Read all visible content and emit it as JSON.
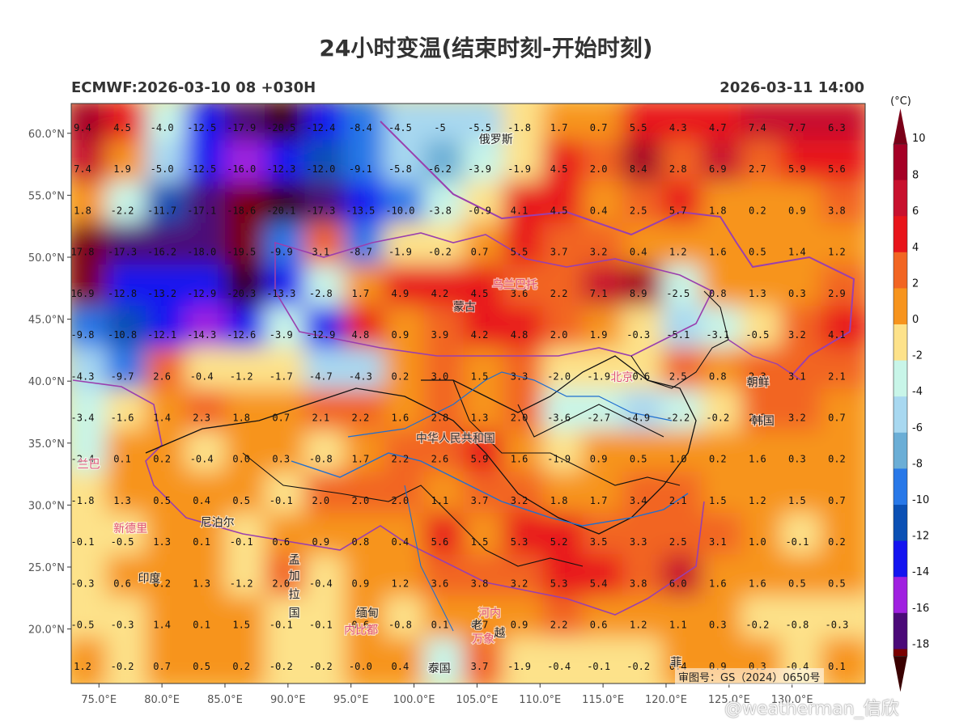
{
  "header": {
    "title": "24小时变温(结束时刻-开始时刻)",
    "model_run": "ECMWF:2026-03-10 08 +030H",
    "valid_time": "2026-03-11 14:00"
  },
  "colorbar": {
    "unit": "(°C)",
    "labels": [
      "10",
      "8",
      "6",
      "4",
      "2",
      "0",
      "-2",
      "-4",
      "-6",
      "-8",
      "-10",
      "-12",
      "-14",
      "-16",
      "-18"
    ],
    "bins": [
      {
        "from": 8,
        "to": 10,
        "color": "#a50026"
      },
      {
        "from": 6,
        "to": 8,
        "color": "#c8102e"
      },
      {
        "from": 4,
        "to": 6,
        "color": "#e8141a"
      },
      {
        "from": 2,
        "to": 4,
        "color": "#f26522"
      },
      {
        "from": 0,
        "to": 2,
        "color": "#f7941d"
      },
      {
        "from": -2,
        "to": 0,
        "color": "#fde28a"
      },
      {
        "from": -4,
        "to": -2,
        "color": "#c8f5e8"
      },
      {
        "from": -6,
        "to": -4,
        "color": "#a8d8f0"
      },
      {
        "from": -8,
        "to": -6,
        "color": "#6baed6"
      },
      {
        "from": -10,
        "to": -8,
        "color": "#2878e8"
      },
      {
        "from": -12,
        "to": -10,
        "color": "#0b50b4"
      },
      {
        "from": -14,
        "to": -12,
        "color": "#1414f0"
      },
      {
        "from": -16,
        "to": -14,
        "color": "#a020e0"
      },
      {
        "from": -18,
        "to": -16,
        "color": "#4b0a78"
      },
      {
        "from": -20,
        "to": -18,
        "color": "#7a0000"
      }
    ],
    "top_cap_color": "#7a0018",
    "bottom_cap_color": "#3a0000"
  },
  "axes": {
    "lat_labels": [
      "60.0°N",
      "55.0°N",
      "50.0°N",
      "45.0°N",
      "40.0°N",
      "35.0°N",
      "30.0°N",
      "25.0°N",
      "20.0°N"
    ],
    "lon_labels": [
      "75.0°E",
      "80.0°E",
      "85.0°E",
      "90.0°E",
      "95.0°E",
      "100.0°E",
      "105.0°E",
      "110.0°E",
      "115.0°E",
      "120.0°E",
      "125.0°E",
      "130.0°E"
    ],
    "lat_values": [
      60,
      55,
      50,
      45,
      40,
      35,
      30,
      25,
      20
    ],
    "lon_values": [
      75,
      80,
      85,
      90,
      95,
      100,
      105,
      110,
      115,
      120,
      125,
      130
    ]
  },
  "grid_values": [
    [
      "9.4",
      "4.5",
      "-4.0",
      "-12.5",
      "-17.9",
      "-20.5",
      "-12.4",
      "-8.4",
      "-4.5",
      "-5",
      "-5.5",
      "-1.8",
      "1.7",
      "0.7",
      "5.5",
      "4.3",
      "4.7",
      "7.4",
      "7.7",
      "6.3"
    ],
    [
      "7.4",
      "1.9",
      "-5.0",
      "-12.5",
      "-16.0",
      "-12.3",
      "-12.0",
      "-9.1",
      "-5.8",
      "-6.2",
      "-3.9",
      "-1.9",
      "4.5",
      "2.0",
      "8.4",
      "2.8",
      "6.9",
      "2.7",
      "5.9",
      "5.6"
    ],
    [
      "1.8",
      "-2.2",
      "-11.7",
      "-17.1",
      "-18.6",
      "-20.1",
      "-17.3",
      "-13.5",
      "-10.0",
      "-3.8",
      "-0.9",
      "4.1",
      "4.5",
      "0.4",
      "2.5",
      "5.7",
      "1.8",
      "0.2",
      "0.9",
      "3.8"
    ],
    [
      "17.8",
      "-17.3",
      "-16.2",
      "-18.0",
      "-19.5",
      "-9.9",
      "3.1",
      "-8.7",
      "-1.9",
      "-0.2",
      "0.7",
      "5.5",
      "3.7",
      "3.2",
      "0.4",
      "1.2",
      "1.6",
      "0.5",
      "1.4",
      "1.2"
    ],
    [
      "16.9",
      "-12.8",
      "-13.2",
      "-12.9",
      "-20.3",
      "-13.3",
      "-2.8",
      "1.7",
      "4.9",
      "4.2",
      "4.5",
      "3.6",
      "2.2",
      "7.1",
      "8.9",
      "-2.5",
      "0.8",
      "1.3",
      "0.3",
      "2.9"
    ],
    [
      "-9.8",
      "-10.8",
      "-12.1",
      "-14.3",
      "-12.6",
      "-3.9",
      "-12.9",
      "4.8",
      "0.9",
      "3.9",
      "4.2",
      "4.8",
      "2.0",
      "1.9",
      "-0.3",
      "-5.1",
      "-3.1",
      "-0.5",
      "3.2",
      "4.1"
    ],
    [
      "-4.3",
      "-9.7",
      "2.6",
      "-0.4",
      "-1.2",
      "-1.7",
      "-4.7",
      "-4.3",
      "0.2",
      "3.0",
      "1.5",
      "3.3",
      "-2.0",
      "-1.9",
      "-0.6",
      "2.5",
      "0.8",
      "2.3",
      "3.1",
      "2.1"
    ],
    [
      "-3.4",
      "-1.6",
      "1.4",
      "2.3",
      "1.8",
      "0.7",
      "2.1",
      "2.2",
      "1.6",
      "2.8",
      "1.3",
      "2.0",
      "-3.6",
      "-2.7",
      "-4.9",
      "-2.2",
      "-0.2",
      "2.3",
      "3.2",
      "0.7"
    ],
    [
      "-2.4",
      "0.1",
      "0.2",
      "-0.4",
      "0.0",
      "0.3",
      "-0.8",
      "1.7",
      "2.2",
      "2.6",
      "5.9",
      "1.6",
      "-1.9",
      "0.9",
      "0.5",
      "1.0",
      "0.2",
      "1.6",
      "0.3",
      "0.2"
    ],
    [
      "-1.8",
      "1.3",
      "0.5",
      "0.4",
      "0.5",
      "-0.1",
      "2.0",
      "2.0",
      "2.0",
      "1.1",
      "3.7",
      "3.2",
      "1.8",
      "1.7",
      "3.4",
      "2.1",
      "1.5",
      "1.2",
      "1.5",
      "0.7"
    ],
    [
      "-0.1",
      "-0.5",
      "1.3",
      "0.1",
      "-0.1",
      "0.6",
      "0.9",
      "0.8",
      "0.4",
      "5.6",
      "1.5",
      "5.3",
      "5.2",
      "3.5",
      "3.3",
      "2.5",
      "3.1",
      "1.0",
      "-0.1",
      "0.2"
    ],
    [
      "-0.3",
      "0.6",
      "0.2",
      "1.3",
      "-1.2",
      "2.0",
      "-0.4",
      "0.9",
      "1.2",
      "3.6",
      "3.8",
      "3.2",
      "5.3",
      "5.4",
      "3.8",
      "6.0",
      "1.6",
      "1.6",
      "0.5",
      "0.5"
    ],
    [
      "-0.5",
      "-0.3",
      "1.4",
      "0.1",
      "1.5",
      "-0.1",
      "-0.1",
      "0.6",
      "-0.8",
      "0.1",
      "0.7",
      "0.9",
      "2.2",
      "0.6",
      "1.2",
      "1.1",
      "0.3",
      "-0.2",
      "-0.8",
      "-0.3"
    ],
    [
      "1.2",
      "-0.2",
      "0.7",
      "0.5",
      "0.2",
      "-0.2",
      "-0.2",
      "-0.0",
      "0.4",
      "-2.1",
      "3.7",
      "-1.9",
      "-0.4",
      "-0.1",
      "-0.2",
      "0.4",
      "0.9",
      "0.3",
      "-0.4",
      "0.1"
    ]
  ],
  "places": [
    {
      "name": "俄罗斯",
      "lon": 106.5,
      "lat": 59.2,
      "color": "#222"
    },
    {
      "name": "蒙古",
      "lon": 104.0,
      "lat": 45.7,
      "color": "#222"
    },
    {
      "name": "乌兰巴托",
      "lon": 108.0,
      "lat": 47.5,
      "color": "#e0557a"
    },
    {
      "name": "北京",
      "lon": 116.5,
      "lat": 40.0,
      "color": "#e0557a"
    },
    {
      "name": "朝鲜",
      "lon": 127.3,
      "lat": 39.6,
      "color": "#222"
    },
    {
      "name": "韩国",
      "lon": 127.7,
      "lat": 36.5,
      "color": "#222"
    },
    {
      "name": "中华人民共和国",
      "lon": 103.3,
      "lat": 35.1,
      "color": "#333"
    },
    {
      "name": "兰巴",
      "lon": 74.2,
      "lat": 33.0,
      "color": "#e0557a"
    },
    {
      "name": "新德里",
      "lon": 77.5,
      "lat": 27.8,
      "color": "#e0557a"
    },
    {
      "name": "尼泊尔",
      "lon": 84.4,
      "lat": 28.3,
      "color": "#222"
    },
    {
      "name": "孟",
      "lon": 90.5,
      "lat": 25.3,
      "color": "#222"
    },
    {
      "name": "加",
      "lon": 90.5,
      "lat": 24.0,
      "color": "#222"
    },
    {
      "name": "拉",
      "lon": 90.5,
      "lat": 22.5,
      "color": "#222"
    },
    {
      "name": "国",
      "lon": 90.5,
      "lat": 21.0,
      "color": "#222"
    },
    {
      "name": "印度",
      "lon": 79.0,
      "lat": 23.8,
      "color": "#222"
    },
    {
      "name": "缅甸",
      "lon": 96.3,
      "lat": 21.0,
      "color": "#222"
    },
    {
      "name": "内比都",
      "lon": 95.8,
      "lat": 19.6,
      "color": "#e0557a"
    },
    {
      "name": "河内",
      "lon": 106.0,
      "lat": 21.0,
      "color": "#e0557a"
    },
    {
      "name": "老",
      "lon": 105.0,
      "lat": 20.0,
      "color": "#222"
    },
    {
      "name": "万象",
      "lon": 105.5,
      "lat": 18.9,
      "color": "#e0557a"
    },
    {
      "name": "越",
      "lon": 106.8,
      "lat": 19.4,
      "color": "#222"
    },
    {
      "name": "泰国",
      "lon": 102.0,
      "lat": 16.5,
      "color": "#222"
    },
    {
      "name": "菲",
      "lon": 120.8,
      "lat": 17.0,
      "color": "#222"
    }
  ],
  "footer": {
    "approval_number": "审图号：GS（2024）0650号",
    "watermark": "@weatherman_信欣"
  }
}
